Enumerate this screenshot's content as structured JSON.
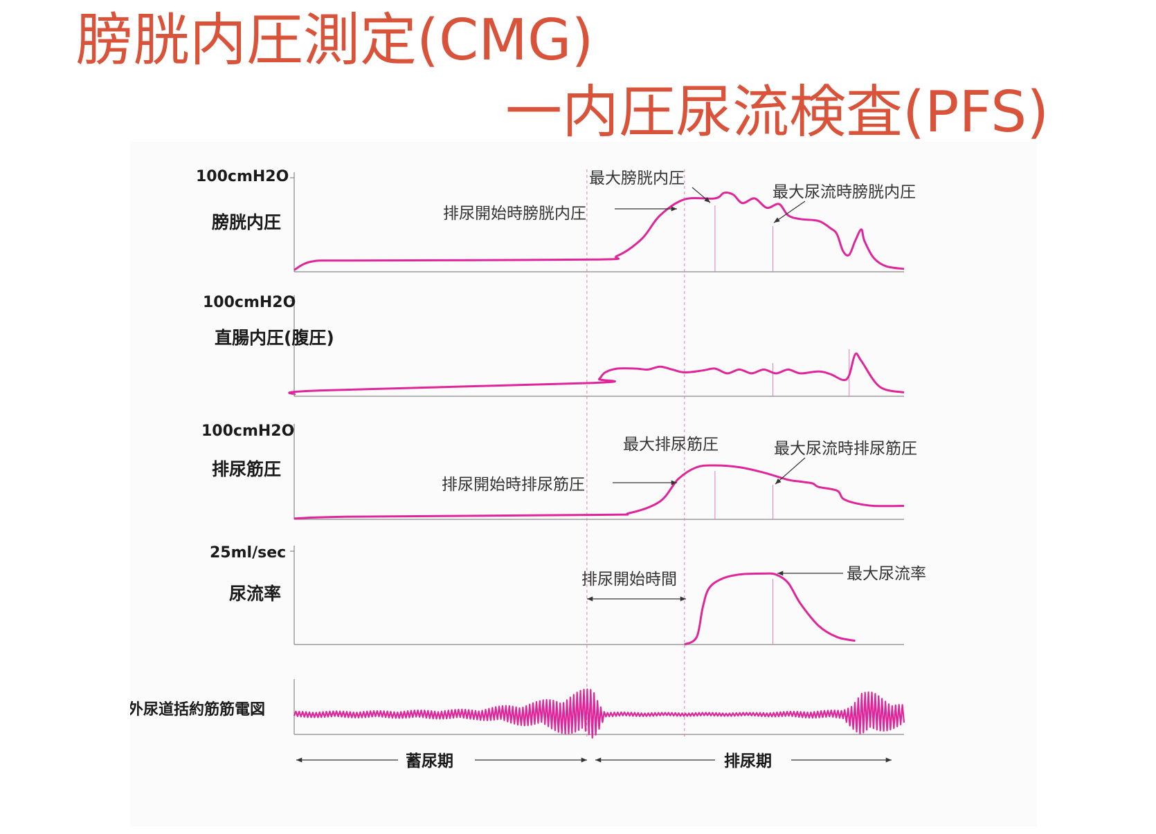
{
  "title": {
    "line1": "膀胱内圧測定(CMG)",
    "line2": "一内圧尿流検査(PFS)"
  },
  "colors": {
    "title": "#d9533a",
    "trace": "#e0259a",
    "guide": "#e07ab8",
    "axis": "#888888",
    "text": "#1a1a1a"
  },
  "chart_data": {
    "type": "line",
    "x_phase_labels": [
      "蓄尿期",
      "排尿期"
    ],
    "panels": [
      {
        "name": "膀胱内圧",
        "scale_label": "100cmH2O",
        "annotations": [
          "最大膀胱内圧",
          "排尿開始時膀胱内圧",
          "最大尿流時膀胱内圧"
        ],
        "points": [
          [
            0,
            2
          ],
          [
            0.03,
            11
          ],
          [
            0.1,
            12
          ],
          [
            0.49,
            13
          ],
          [
            0.53,
            17
          ],
          [
            0.57,
            35
          ],
          [
            0.6,
            60
          ],
          [
            0.64,
            77
          ],
          [
            0.69,
            78
          ],
          [
            0.705,
            84
          ],
          [
            0.72,
            82
          ],
          [
            0.735,
            73
          ],
          [
            0.755,
            78
          ],
          [
            0.775,
            68
          ],
          [
            0.795,
            72
          ],
          [
            0.81,
            60
          ],
          [
            0.83,
            56
          ],
          [
            0.86,
            54
          ],
          [
            0.88,
            46
          ],
          [
            0.89,
            40
          ],
          [
            0.9,
            22
          ],
          [
            0.91,
            18
          ],
          [
            0.92,
            33
          ],
          [
            0.93,
            45
          ],
          [
            0.935,
            33
          ],
          [
            0.95,
            15
          ],
          [
            0.97,
            6
          ],
          [
            1,
            3
          ]
        ]
      },
      {
        "name": "直腸内圧(腹圧)",
        "scale_label": "100cmH2O",
        "annotations": [],
        "points": [
          [
            0,
            2
          ],
          [
            0.04,
            6
          ],
          [
            0.49,
            14
          ],
          [
            0.5,
            18
          ],
          [
            0.51,
            25
          ],
          [
            0.53,
            29
          ],
          [
            0.56,
            29
          ],
          [
            0.58,
            28
          ],
          [
            0.6,
            31
          ],
          [
            0.62,
            28
          ],
          [
            0.64,
            25
          ],
          [
            0.67,
            27
          ],
          [
            0.69,
            29
          ],
          [
            0.71,
            24
          ],
          [
            0.73,
            28
          ],
          [
            0.75,
            24
          ],
          [
            0.77,
            28
          ],
          [
            0.79,
            24
          ],
          [
            0.81,
            28
          ],
          [
            0.83,
            24
          ],
          [
            0.86,
            26
          ],
          [
            0.88,
            23
          ],
          [
            0.9,
            17
          ],
          [
            0.91,
            22
          ],
          [
            0.92,
            44
          ],
          [
            0.93,
            37
          ],
          [
            0.96,
            10
          ],
          [
            1,
            4
          ]
        ]
      },
      {
        "name": "排尿筋圧",
        "scale_label": "100cmH2O",
        "annotations": [
          "最大排尿筋圧",
          "排尿開始時排尿筋圧",
          "最大尿流時排尿筋圧"
        ],
        "points": [
          [
            0,
            1
          ],
          [
            0.1,
            3
          ],
          [
            0.5,
            5
          ],
          [
            0.55,
            7
          ],
          [
            0.6,
            20
          ],
          [
            0.63,
            45
          ],
          [
            0.66,
            58
          ],
          [
            0.69,
            60
          ],
          [
            0.73,
            58
          ],
          [
            0.77,
            52
          ],
          [
            0.81,
            44
          ],
          [
            0.83,
            42
          ],
          [
            0.85,
            40
          ],
          [
            0.86,
            36
          ],
          [
            0.89,
            32
          ],
          [
            0.9,
            23
          ],
          [
            0.92,
            18
          ],
          [
            0.95,
            15
          ],
          [
            1,
            15
          ]
        ]
      },
      {
        "name": "尿流率",
        "scale_label": "25ml/sec",
        "annotations": [
          "排尿開始時間",
          "最大尿流率"
        ],
        "points": [
          [
            0.64,
            0
          ],
          [
            0.66,
            8
          ],
          [
            0.67,
            40
          ],
          [
            0.68,
            60
          ],
          [
            0.7,
            70
          ],
          [
            0.73,
            75
          ],
          [
            0.77,
            76
          ],
          [
            0.79,
            75
          ],
          [
            0.81,
            66
          ],
          [
            0.83,
            44
          ],
          [
            0.86,
            20
          ],
          [
            0.89,
            8
          ],
          [
            0.92,
            4
          ]
        ]
      },
      {
        "name": "外尿道括約筋筋電図",
        "scale_label": "",
        "annotations": [],
        "emg_amplitude_envelope": [
          [
            0,
            0.1
          ],
          [
            0.15,
            0.12
          ],
          [
            0.3,
            0.18
          ],
          [
            0.4,
            0.45
          ],
          [
            0.45,
            0.7
          ],
          [
            0.49,
            0.95
          ],
          [
            0.51,
            0.08
          ],
          [
            0.6,
            0.06
          ],
          [
            0.75,
            0.06
          ],
          [
            0.9,
            0.15
          ],
          [
            0.93,
            0.8
          ],
          [
            0.95,
            0.75
          ],
          [
            1,
            0.35
          ]
        ]
      }
    ],
    "markers": {
      "storage_voiding_boundary": 0.48,
      "voiding_start": 0.64,
      "max_pressure": 0.69,
      "max_flow": 0.785,
      "abd_peak": 0.91
    }
  }
}
